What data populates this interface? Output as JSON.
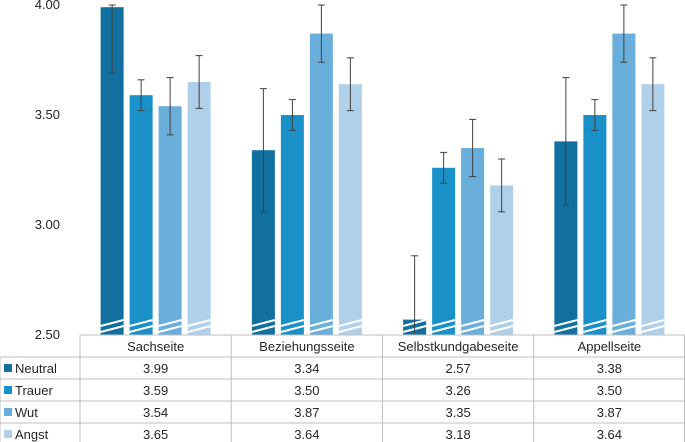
{
  "chart_data": {
    "type": "bar",
    "title": "",
    "xlabel": "",
    "ylabel": "",
    "ylim": [
      2.5,
      4.0
    ],
    "yticks": [
      "2.50",
      "3.00",
      "3.50",
      "4.00"
    ],
    "categories": [
      "Sachseite",
      "Beziehungsseite",
      "Selbstkundgabeseite",
      "Appellseite"
    ],
    "series": [
      {
        "name": "Neutral",
        "color": "#1170a0",
        "values": [
          3.99,
          3.34,
          2.57,
          3.38
        ],
        "labels": [
          "3.99",
          "3.34",
          "2.57",
          "3.38"
        ],
        "error": [
          0.3,
          0.28,
          0.29,
          0.29
        ]
      },
      {
        "name": "Trauer",
        "color": "#1990c8",
        "values": [
          3.59,
          3.5,
          3.26,
          3.5
        ],
        "labels": [
          "3.59",
          "3.50",
          "3.26",
          "3.50"
        ],
        "error": [
          0.07,
          0.07,
          0.07,
          0.07
        ]
      },
      {
        "name": "Wut",
        "color": "#6aaedb",
        "values": [
          3.54,
          3.87,
          3.35,
          3.87
        ],
        "labels": [
          "3.54",
          "3.87",
          "3.35",
          "3.87"
        ],
        "error": [
          0.13,
          0.13,
          0.13,
          0.13
        ]
      },
      {
        "name": "Angst",
        "color": "#b0cfe8",
        "values": [
          3.65,
          3.64,
          3.18,
          3.64
        ],
        "labels": [
          "3.65",
          "3.64",
          "3.18",
          "3.64"
        ],
        "error": [
          0.12,
          0.12,
          0.12,
          0.12
        ]
      }
    ],
    "gridlines": false,
    "legend": "data-table-left",
    "axis_break": "bottom"
  }
}
